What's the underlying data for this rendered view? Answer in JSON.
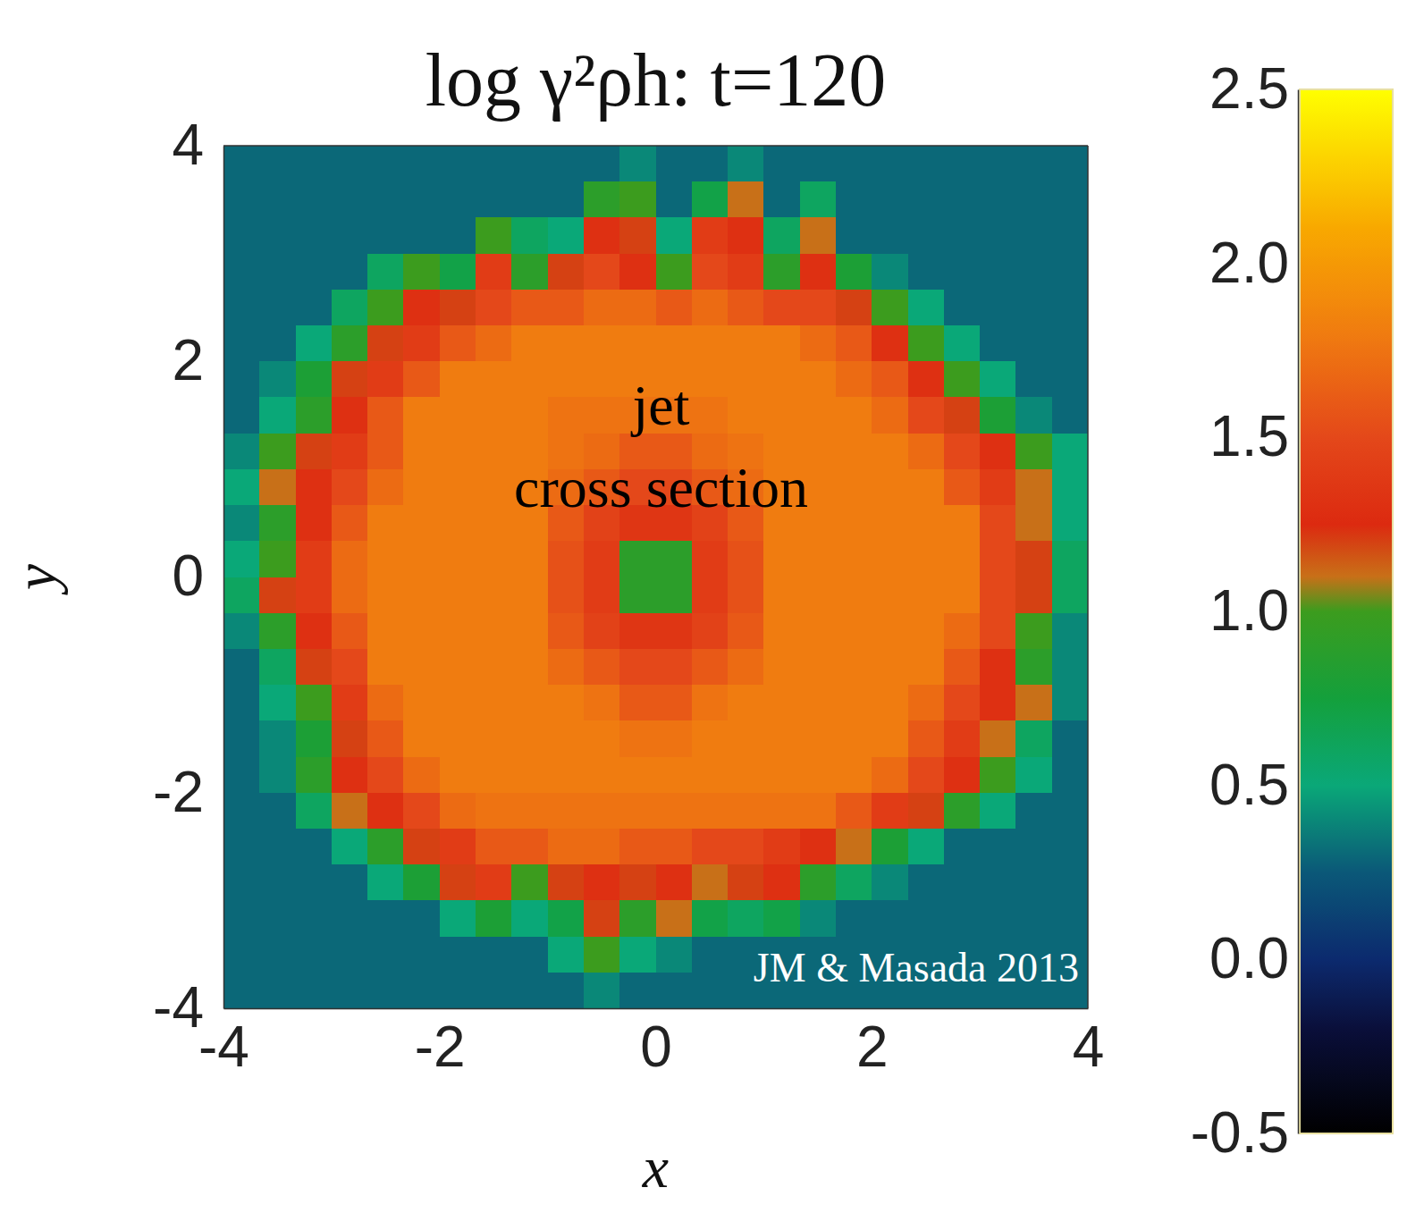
{
  "chart_data": {
    "type": "heatmap",
    "title": "log γ²ρh: t=120",
    "x_label": "x",
    "y_label": "y",
    "xlim": [
      -4,
      4
    ],
    "ylim": [
      -4,
      4
    ],
    "xticks": [
      -4,
      -2,
      0,
      2,
      4
    ],
    "yticks": [
      -4,
      -2,
      0,
      2,
      4
    ],
    "colorbar_range": [
      -0.5,
      2.5
    ],
    "colorbar_ticks": [
      -0.5,
      {
        "value": 0,
        "label": "0.0"
      },
      0.5,
      {
        "value": 1,
        "label": "1.0"
      },
      1.5,
      {
        "value": 2,
        "label": "2.0"
      },
      2.5
    ],
    "annotations": [
      "jet cross section",
      "JM & Masada 2013"
    ],
    "cells": [
      [
        0.3,
        0.3,
        0.3,
        0.3,
        0.3,
        0.3,
        0.3,
        0.3,
        0.3,
        0.3,
        0.3,
        0.4,
        0.3,
        0.3,
        0.4,
        0.3,
        0.3,
        0.3,
        0.3,
        0.3,
        0.3,
        0.3,
        0.3,
        0.3
      ],
      [
        0.3,
        0.3,
        0.3,
        0.3,
        0.3,
        0.3,
        0.3,
        0.3,
        0.3,
        0.3,
        0.9,
        1.0,
        0.3,
        0.7,
        1.1,
        0.3,
        0.6,
        0.3,
        0.3,
        0.3,
        0.3,
        0.3,
        0.3,
        0.3
      ],
      [
        0.3,
        0.3,
        0.3,
        0.3,
        0.3,
        0.3,
        0.3,
        1.0,
        0.6,
        0.5,
        1.3,
        1.2,
        0.5,
        1.4,
        1.3,
        0.6,
        1.1,
        0.3,
        0.3,
        0.3,
        0.3,
        0.3,
        0.3,
        0.3
      ],
      [
        0.3,
        0.3,
        0.3,
        0.3,
        0.6,
        1.0,
        0.7,
        1.4,
        0.9,
        1.2,
        1.5,
        1.3,
        1.0,
        1.5,
        1.4,
        0.9,
        1.3,
        0.8,
        0.4,
        0.3,
        0.3,
        0.3,
        0.3,
        0.3
      ],
      [
        0.3,
        0.3,
        0.3,
        0.6,
        1.0,
        1.3,
        1.2,
        1.5,
        1.6,
        1.6,
        1.7,
        1.7,
        1.6,
        1.7,
        1.6,
        1.5,
        1.5,
        1.2,
        1.0,
        0.5,
        0.3,
        0.3,
        0.3,
        0.3
      ],
      [
        0.3,
        0.3,
        0.5,
        0.9,
        1.2,
        1.4,
        1.6,
        1.7,
        1.8,
        1.8,
        1.8,
        1.8,
        1.8,
        1.8,
        1.8,
        1.8,
        1.7,
        1.6,
        1.3,
        1.0,
        0.5,
        0.3,
        0.3,
        0.3
      ],
      [
        0.3,
        0.4,
        0.8,
        1.2,
        1.4,
        1.6,
        1.8,
        1.8,
        1.8,
        1.8,
        1.8,
        1.8,
        1.8,
        1.8,
        1.8,
        1.8,
        1.8,
        1.7,
        1.6,
        1.3,
        1.0,
        0.5,
        0.3,
        0.3
      ],
      [
        0.3,
        0.5,
        0.9,
        1.3,
        1.6,
        1.8,
        1.8,
        1.8,
        1.8,
        1.75,
        1.75,
        1.75,
        1.75,
        1.75,
        1.8,
        1.8,
        1.8,
        1.8,
        1.7,
        1.5,
        1.2,
        0.8,
        0.4,
        0.3
      ],
      [
        0.4,
        1.0,
        1.2,
        1.4,
        1.6,
        1.8,
        1.8,
        1.8,
        1.8,
        1.75,
        1.7,
        1.6,
        1.6,
        1.7,
        1.75,
        1.8,
        1.8,
        1.8,
        1.8,
        1.7,
        1.5,
        1.3,
        1.0,
        0.5
      ],
      [
        0.5,
        1.1,
        1.3,
        1.5,
        1.7,
        1.8,
        1.8,
        1.8,
        1.8,
        1.7,
        1.6,
        1.5,
        1.5,
        1.6,
        1.7,
        1.8,
        1.8,
        1.8,
        1.8,
        1.8,
        1.6,
        1.4,
        1.1,
        0.5
      ],
      [
        0.4,
        0.9,
        1.3,
        1.6,
        1.8,
        1.8,
        1.8,
        1.8,
        1.8,
        1.6,
        1.45,
        1.35,
        1.35,
        1.45,
        1.6,
        1.8,
        1.8,
        1.8,
        1.8,
        1.8,
        1.8,
        1.5,
        1.1,
        0.5
      ],
      [
        0.5,
        1.0,
        1.4,
        1.7,
        1.8,
        1.8,
        1.8,
        1.8,
        1.8,
        1.55,
        1.4,
        0.9,
        0.9,
        1.4,
        1.55,
        1.8,
        1.8,
        1.8,
        1.8,
        1.8,
        1.8,
        1.5,
        1.2,
        0.6
      ],
      [
        0.6,
        1.2,
        1.4,
        1.7,
        1.8,
        1.8,
        1.8,
        1.8,
        1.8,
        1.55,
        1.4,
        0.9,
        0.9,
        1.4,
        1.55,
        1.8,
        1.8,
        1.8,
        1.8,
        1.8,
        1.8,
        1.5,
        1.2,
        0.6
      ],
      [
        0.4,
        0.9,
        1.3,
        1.6,
        1.8,
        1.8,
        1.8,
        1.8,
        1.8,
        1.6,
        1.45,
        1.35,
        1.35,
        1.45,
        1.6,
        1.8,
        1.8,
        1.8,
        1.8,
        1.8,
        1.7,
        1.5,
        1.0,
        0.4
      ],
      [
        0.3,
        0.6,
        1.2,
        1.5,
        1.8,
        1.8,
        1.8,
        1.8,
        1.8,
        1.7,
        1.6,
        1.5,
        1.5,
        1.6,
        1.7,
        1.8,
        1.8,
        1.8,
        1.8,
        1.8,
        1.6,
        1.3,
        0.9,
        0.4
      ],
      [
        0.3,
        0.5,
        1.0,
        1.4,
        1.7,
        1.8,
        1.8,
        1.8,
        1.8,
        1.8,
        1.75,
        1.6,
        1.6,
        1.75,
        1.8,
        1.8,
        1.8,
        1.8,
        1.8,
        1.7,
        1.5,
        1.3,
        1.1,
        0.4
      ],
      [
        0.3,
        0.4,
        0.8,
        1.2,
        1.6,
        1.8,
        1.8,
        1.8,
        1.8,
        1.8,
        1.8,
        1.75,
        1.75,
        1.8,
        1.8,
        1.8,
        1.8,
        1.8,
        1.8,
        1.6,
        1.4,
        1.1,
        0.6,
        0.3
      ],
      [
        0.3,
        0.4,
        0.9,
        1.3,
        1.5,
        1.7,
        1.8,
        1.8,
        1.8,
        1.8,
        1.8,
        1.8,
        1.8,
        1.8,
        1.8,
        1.8,
        1.8,
        1.8,
        1.7,
        1.5,
        1.3,
        1.0,
        0.5,
        0.3
      ],
      [
        0.3,
        0.3,
        0.6,
        1.1,
        1.3,
        1.5,
        1.7,
        1.75,
        1.75,
        1.75,
        1.75,
        1.75,
        1.75,
        1.75,
        1.75,
        1.75,
        1.75,
        1.6,
        1.4,
        1.2,
        0.9,
        0.5,
        0.3,
        0.3
      ],
      [
        0.3,
        0.3,
        0.3,
        0.5,
        0.9,
        1.2,
        1.4,
        1.6,
        1.6,
        1.7,
        1.7,
        1.6,
        1.6,
        1.5,
        1.5,
        1.4,
        1.3,
        1.1,
        0.8,
        0.5,
        0.3,
        0.3,
        0.3,
        0.3
      ],
      [
        0.3,
        0.3,
        0.3,
        0.3,
        0.5,
        0.8,
        1.2,
        1.4,
        1.0,
        1.2,
        1.3,
        1.2,
        1.3,
        1.1,
        1.2,
        1.3,
        0.9,
        0.6,
        0.4,
        0.3,
        0.3,
        0.3,
        0.3,
        0.3
      ],
      [
        0.3,
        0.3,
        0.3,
        0.3,
        0.3,
        0.3,
        0.5,
        0.8,
        0.5,
        0.7,
        1.2,
        0.9,
        1.1,
        0.7,
        0.6,
        0.7,
        0.4,
        0.3,
        0.3,
        0.3,
        0.3,
        0.3,
        0.3,
        0.3
      ],
      [
        0.3,
        0.3,
        0.3,
        0.3,
        0.3,
        0.3,
        0.3,
        0.3,
        0.3,
        0.5,
        1.0,
        0.5,
        0.4,
        0.3,
        0.3,
        0.3,
        0.3,
        0.3,
        0.3,
        0.3,
        0.3,
        0.3,
        0.3,
        0.3
      ],
      [
        0.3,
        0.3,
        0.3,
        0.3,
        0.3,
        0.3,
        0.3,
        0.3,
        0.3,
        0.3,
        0.4,
        0.3,
        0.3,
        0.3,
        0.3,
        0.3,
        0.3,
        0.3,
        0.3,
        0.3,
        0.3,
        0.3,
        0.3,
        0.3
      ]
    ]
  }
}
